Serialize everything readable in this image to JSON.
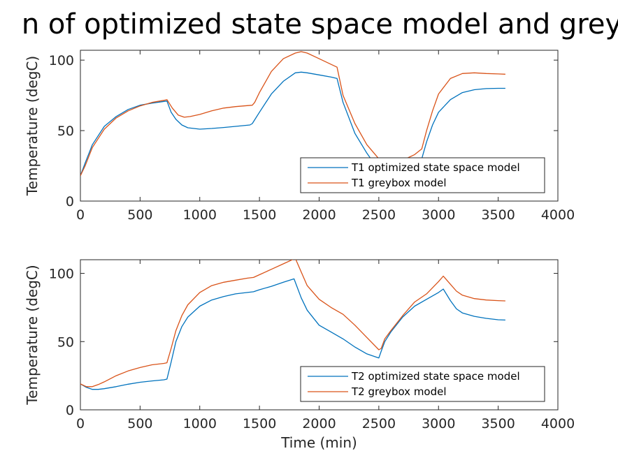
{
  "figure": {
    "title": "n of optimized state space model and grey"
  },
  "colors": {
    "optimized": "#0072bd",
    "greybox": "#d95319",
    "axis": "#262626"
  },
  "chart_data": [
    {
      "type": "line",
      "title": "",
      "xlabel": "",
      "ylabel": "Temperature (degC)",
      "xlim": [
        0,
        4000
      ],
      "ylim": [
        0,
        107
      ],
      "xticks": [
        0,
        500,
        1000,
        1500,
        2000,
        2500,
        3000,
        3500,
        4000
      ],
      "yticks": [
        0,
        50,
        100
      ],
      "legend_placement": "bottom-right",
      "grid": false,
      "series": [
        {
          "name": "T1 optimized state space model",
          "color": "#0072bd",
          "x": [
            0,
            40,
            100,
            200,
            300,
            400,
            500,
            600,
            700,
            725,
            760,
            800,
            850,
            900,
            1000,
            1100,
            1200,
            1300,
            1420,
            1440,
            1500,
            1600,
            1700,
            1800,
            1850,
            1900,
            2000,
            2100,
            2150,
            2200,
            2300,
            2400,
            2450,
            2850,
            2860,
            2900,
            2950,
            3000,
            3100,
            3200,
            3300,
            3400,
            3500,
            3560
          ],
          "y": [
            18,
            27,
            40,
            53,
            60,
            65,
            68,
            69.5,
            70.7,
            71,
            63,
            58,
            54,
            52,
            51,
            51.5,
            52.2,
            53,
            54,
            55,
            63,
            76,
            85,
            91,
            91.5,
            91,
            89.5,
            88,
            87,
            70,
            48,
            34,
            28,
            28,
            30,
            42,
            54,
            63,
            72,
            77,
            79,
            79.8,
            80,
            80
          ]
        },
        {
          "name": "T1 greybox model",
          "color": "#d95319",
          "x": [
            0,
            40,
            100,
            200,
            300,
            400,
            500,
            600,
            700,
            725,
            770,
            820,
            870,
            920,
            1000,
            1100,
            1200,
            1300,
            1440,
            1460,
            1500,
            1600,
            1700,
            1800,
            1850,
            1900,
            2000,
            2100,
            2150,
            2200,
            2300,
            2400,
            2500,
            2600,
            2700,
            2800,
            2860,
            2900,
            2950,
            3000,
            3100,
            3200,
            3300,
            3400,
            3500,
            3560
          ],
          "y": [
            18,
            25,
            38,
            51,
            59,
            64,
            67.5,
            70,
            71.5,
            72,
            66,
            61,
            59.5,
            60,
            61.5,
            64,
            66,
            67,
            68,
            70,
            77,
            92,
            101,
            105,
            106,
            105,
            101,
            97,
            95,
            75,
            55,
            40,
            30,
            27,
            29,
            33,
            37,
            50,
            64,
            76,
            87,
            90.5,
            91,
            90.5,
            90.2,
            90
          ]
        }
      ]
    },
    {
      "type": "line",
      "title": "",
      "xlabel": "Time (min)",
      "ylabel": "Temperature (degC)",
      "xlim": [
        0,
        4000
      ],
      "ylim": [
        0,
        110
      ],
      "xticks": [
        0,
        500,
        1000,
        1500,
        2000,
        2500,
        3000,
        3500,
        4000
      ],
      "yticks": [
        0,
        50,
        100
      ],
      "legend_placement": "bottom-right",
      "grid": false,
      "series": [
        {
          "name": "T2 optimized state space model",
          "color": "#0072bd",
          "x": [
            0,
            50,
            100,
            150,
            200,
            300,
            400,
            500,
            600,
            700,
            725,
            760,
            800,
            850,
            900,
            1000,
            1100,
            1200,
            1300,
            1400,
            1450,
            1500,
            1600,
            1700,
            1790,
            1850,
            1900,
            2000,
            2100,
            2200,
            2300,
            2400,
            2500,
            2520,
            2550,
            2600,
            2700,
            2800,
            2900,
            3000,
            3040,
            3100,
            3150,
            3200,
            3300,
            3400,
            3500,
            3560
          ],
          "y": [
            19,
            16.5,
            15,
            15,
            15.5,
            17,
            18.8,
            20.2,
            21.2,
            22,
            22.5,
            35,
            50,
            61,
            68,
            76,
            80.5,
            83,
            85,
            86,
            86.5,
            88,
            90.5,
            93.5,
            96,
            82,
            73,
            62,
            57,
            52,
            46,
            41,
            38,
            43,
            50,
            57,
            68,
            76,
            81,
            86,
            88.5,
            80,
            74,
            71,
            68.5,
            67,
            66,
            65.8
          ]
        },
        {
          "name": "T2 greybox model",
          "color": "#d95319",
          "x": [
            0,
            50,
            100,
            150,
            200,
            300,
            400,
            500,
            600,
            700,
            725,
            760,
            800,
            850,
            900,
            1000,
            1100,
            1200,
            1300,
            1400,
            1450,
            1500,
            1600,
            1700,
            1800,
            1850,
            1900,
            2000,
            2100,
            2200,
            2300,
            2400,
            2500,
            2520,
            2550,
            2600,
            2700,
            2800,
            2900,
            3000,
            3040,
            3100,
            3150,
            3200,
            3300,
            3400,
            3500,
            3560
          ],
          "y": [
            19,
            17,
            17,
            18.5,
            20.5,
            25,
            28.5,
            31,
            33,
            34,
            34.5,
            45,
            58,
            69,
            77,
            86,
            91,
            93.5,
            95,
            96.5,
            97,
            99,
            103,
            107,
            111,
            101,
            91,
            81,
            75,
            70,
            62,
            53,
            44,
            45,
            52,
            58,
            69,
            79,
            85,
            94,
            98,
            92,
            87,
            84,
            81.5,
            80.5,
            80,
            79.8
          ]
        }
      ]
    }
  ]
}
